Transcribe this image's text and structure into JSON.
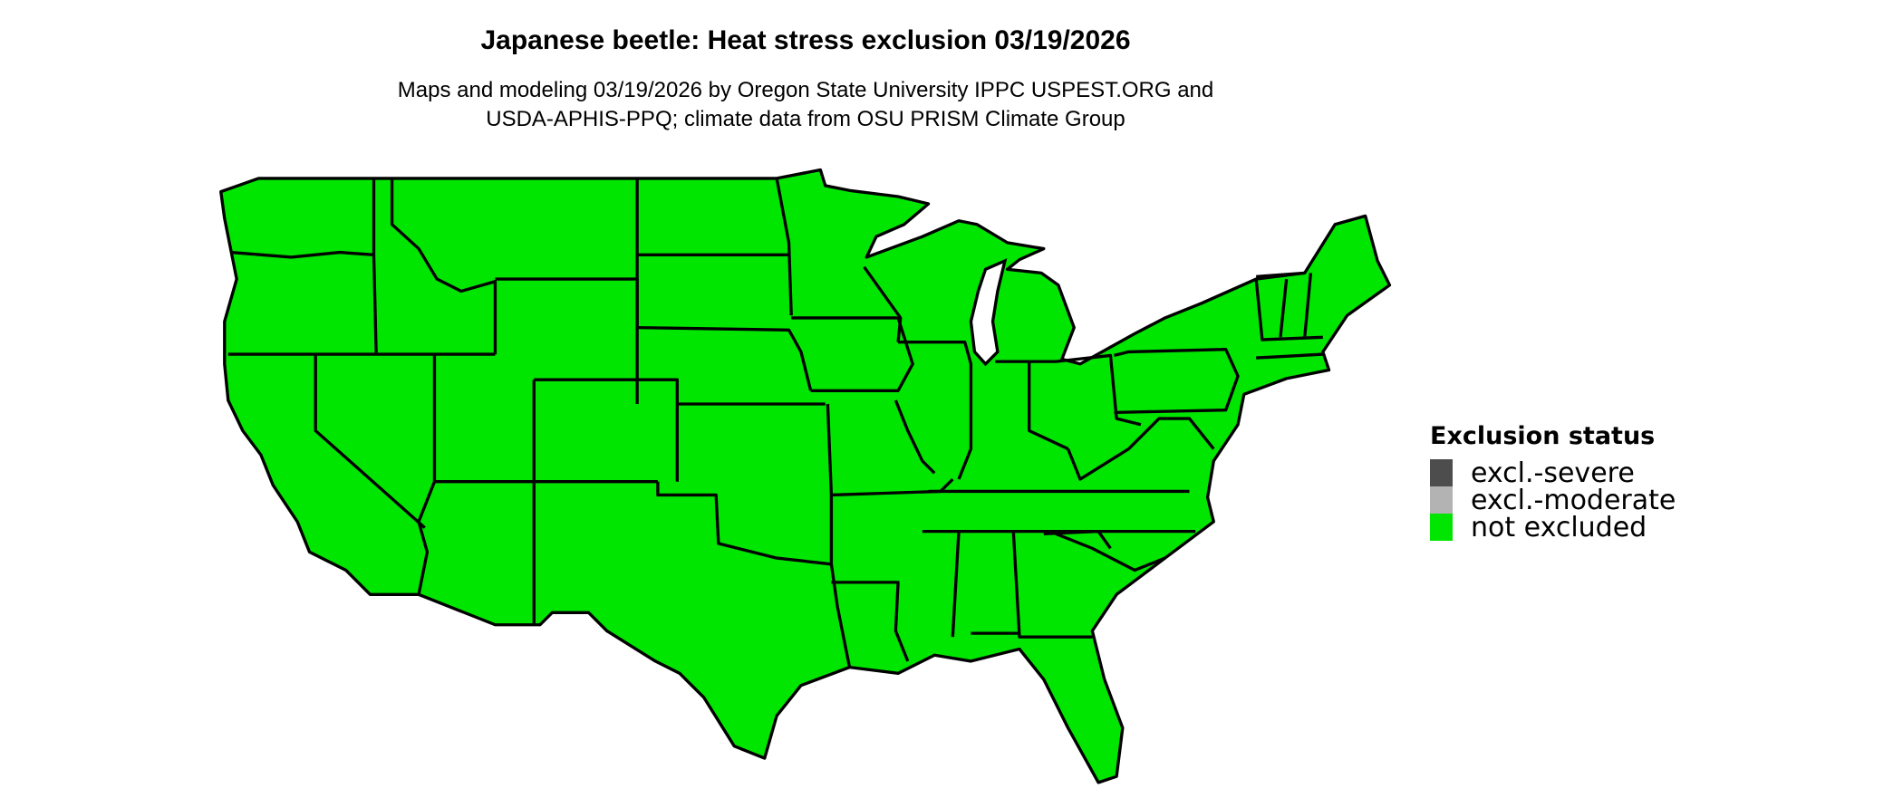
{
  "title": "Japanese beetle: Heat stress exclusion 03/19/2026",
  "subtitle_line1": "Maps and modeling 03/19/2026 by Oregon State University IPPC USPEST.ORG and",
  "subtitle_line2": "USDA-APHIS-PPQ; climate data from OSU PRISM Climate Group",
  "legend": {
    "title": "Exclusion status",
    "items": [
      {
        "label": "excl.-severe",
        "color": "#4d4d4d"
      },
      {
        "label": "excl.-moderate",
        "color": "#b3b3b3"
      },
      {
        "label": "not excluded",
        "color": "#00e600"
      }
    ]
  },
  "map": {
    "region": "Contiguous United States",
    "fill_status": "not excluded",
    "fill_color": "#00e600",
    "border_color": "#000000"
  }
}
